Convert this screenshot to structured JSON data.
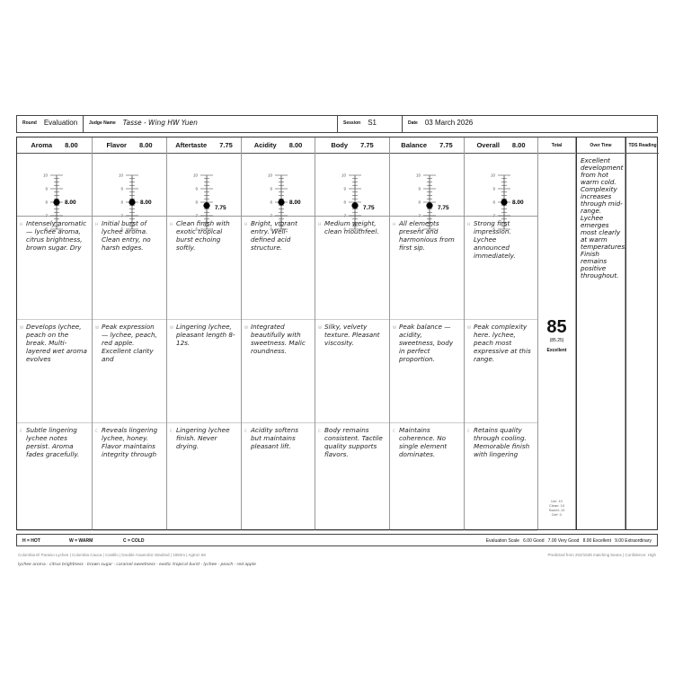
{
  "header": {
    "round_label": "Round",
    "round": "Evaluation",
    "judge_label": "Judge Name",
    "judge": "Tasse - Wing HW Yuen",
    "session_label": "Session",
    "session": "S1",
    "date_label": "Date",
    "date": "03 March 2026"
  },
  "attributes": [
    {
      "name": "Aroma",
      "score": "8.00",
      "value": 8.0,
      "notes": {
        "H": "Intensely aromatic — lychee aroma, citrus brightness, brown sugar. Dry",
        "W": "Develops lychee, peach on the break. Multi-layered wet aroma evolves",
        "C": "Subtle lingering lychee notes persist. Aroma fades gracefully."
      }
    },
    {
      "name": "Flavor",
      "score": "8.00",
      "value": 8.0,
      "notes": {
        "H": "Initial burst of lychee aroma. Clean entry, no harsh edges.",
        "W": "Peak expression — lychee, peach, red apple. Excellent clarity and",
        "C": "Reveals lingering lychee, honey. Flavor maintains integrity through"
      }
    },
    {
      "name": "Aftertaste",
      "score": "7.75",
      "value": 7.75,
      "notes": {
        "H": "Clean finish with exotic tropical burst echoing softly.",
        "W": "Lingering lychee, pleasant length 8-12s.",
        "C": "Lingering lychee finish. Never drying."
      }
    },
    {
      "name": "Acidity",
      "score": "8.00",
      "value": 8.0,
      "notes": {
        "H": "Bright, vibrant entry. Well-defined acid structure.",
        "W": "Integrated beautifully with sweetness. Malic roundness.",
        "C": "Acidity softens but maintains pleasant lift."
      }
    },
    {
      "name": "Body",
      "score": "7.75",
      "value": 7.75,
      "notes": {
        "H": "Medium weight, clean mouthfeel.",
        "W": "Silky, velvety texture. Pleasant viscosity.",
        "C": "Body remains consistent. Tactile quality supports flavors."
      }
    },
    {
      "name": "Balance",
      "score": "7.75",
      "value": 7.75,
      "notes": {
        "H": "All elements present and harmonious from first sip.",
        "W": "Peak balance — acidity, sweetness, body in perfect proportion.",
        "C": "Maintains coherence. No single element dominates."
      }
    },
    {
      "name": "Overall",
      "score": "8.00",
      "value": 8.0,
      "notes": {
        "H": "Strong first impression. Lychee announced immediately.",
        "W": "Peak complexity here. lychee, peach most expressive at this range.",
        "C": "Retains quality through cooling. Memorable finish with lingering"
      }
    }
  ],
  "scale_ticks": [
    "10",
    "9",
    "8",
    "7",
    "6"
  ],
  "row_tags": [
    "H",
    "W",
    "C"
  ],
  "total": {
    "label": "Total",
    "score": "85",
    "exact": "(85.25)",
    "grade": "Excellent",
    "uni": "Uni: 10",
    "clean": "Clean: 10",
    "sweet": "Sweet: 10",
    "def": "Def: 0"
  },
  "over_time": {
    "label": "Over Time",
    "text": "Excellent development from hot warm cold. Complexity increases through mid-range. Lychee emerges most clearly at warm temperatures. Finish remains positive throughout."
  },
  "tds": {
    "label": "TDS Reading"
  },
  "legend": {
    "hot": "H = HOT",
    "warm": "W = WARM",
    "cold": "C = COLD",
    "scale": "Evaluation Scale   6.00 Good   7.00 Very Good   8.00 Excellent   9.00 Extraordinary"
  },
  "footer": {
    "bean": "Colombia El Paraiso Lychee  |  Colombia Cauca  |  Castillo  |  Double Anaerobic Washed  |  1850m  |  Agtron 68",
    "prediction": "Predicted from 202/1539 matching beans  |  Confidence: High",
    "descriptors": "lychee aroma  ·  citrus brightness  ·  brown sugar  ·  caramel sweetness  ·  exotic tropical burst  ·  lychee  ·  peach  ·  red apple"
  }
}
